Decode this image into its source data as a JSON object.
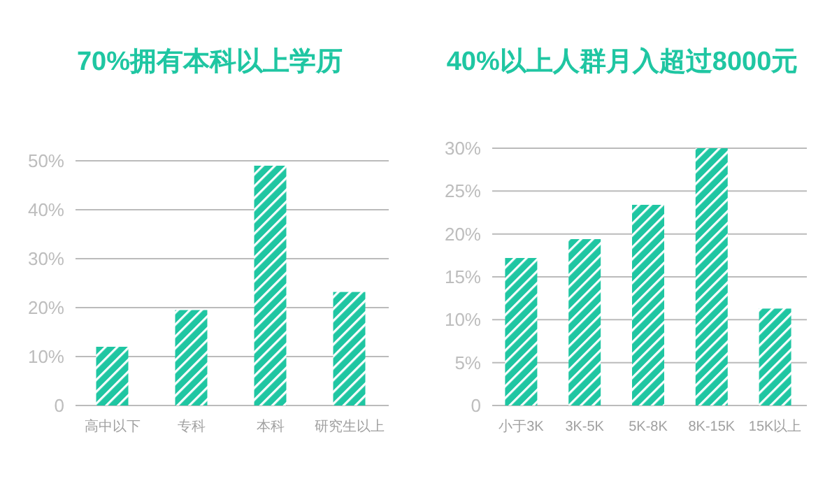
{
  "chart_data": [
    {
      "type": "bar",
      "title": "70%拥有本科以上学历",
      "categories": [
        "高中以下",
        "专科",
        "本科",
        "研究生以上"
      ],
      "values": [
        12,
        19.5,
        49,
        23.2
      ],
      "color": "#1fc6a2",
      "ylim": [
        0,
        50
      ],
      "yticks": [
        0,
        {
          "value": 10,
          "label": "10%"
        },
        {
          "value": 20,
          "label": "20%"
        },
        {
          "value": 30,
          "label": "30%"
        },
        {
          "value": 40,
          "label": "40%"
        },
        {
          "value": 50,
          "label": "50%"
        }
      ],
      "grid": "y"
    },
    {
      "type": "bar",
      "title": "40%以上人群月入超过8000元",
      "categories": [
        "小于3K",
        "3K-5K",
        "5K-8K",
        "8K-15K",
        "15K以上"
      ],
      "values": [
        17.2,
        19.4,
        23.4,
        30,
        11.3
      ],
      "color": "#1fc6a2",
      "ylim": [
        0,
        30
      ],
      "yticks": [
        0,
        {
          "value": 5,
          "label": "5%"
        },
        {
          "value": 10,
          "label": "10%"
        },
        {
          "value": 15,
          "label": "15%"
        },
        {
          "value": 20,
          "label": "20%"
        },
        {
          "value": 25,
          "label": "25%"
        },
        {
          "value": 30,
          "label": "30%"
        }
      ],
      "grid": "y"
    }
  ]
}
